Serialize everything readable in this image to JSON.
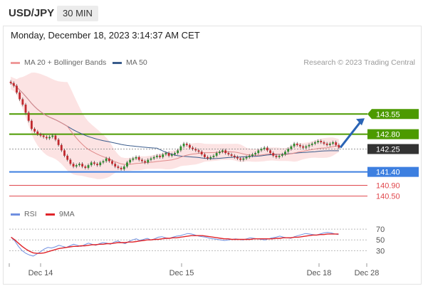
{
  "header": {
    "symbol": "USD/JPY",
    "timeframe": "30 MIN",
    "timestamp": "Monday, December 18, 2023 3:14:37 AM CET"
  },
  "legend": {
    "ma20_label": "MA 20 + Bollinger Bands",
    "ma50_label": "MA 50",
    "credit": "Research © 2023 Trading Central",
    "rsi_label": "RSI",
    "rsi_ma_label": "9MA"
  },
  "colors": {
    "up_candle": "#2e8b2e",
    "down_candle": "#c0282d",
    "resistance": "#4c9a00",
    "pivot": "#333333",
    "support_main": "#3d7fe0",
    "support_minor": "#e0474c",
    "ma20": "#e08a8a",
    "ma50": "#3a5c8c",
    "bollinger_fill": "#fbdada",
    "rsi": "#6f8fe0",
    "rsi_ma": "#e0242a",
    "arrow": "#2a64b5"
  },
  "chart_data": {
    "type": "candlestick",
    "x_labels": [
      "Dec 14",
      "Dec 15",
      "Dec 18",
      "Dec 28"
    ],
    "price_axis": {
      "min": 140.2,
      "max": 144.8
    },
    "levels": [
      {
        "value": 143.55,
        "label": "143.55",
        "kind": "resistance"
      },
      {
        "value": 142.8,
        "label": "142.80",
        "kind": "resistance"
      },
      {
        "value": 142.25,
        "label": "142.25",
        "kind": "pivot"
      },
      {
        "value": 141.4,
        "label": "141.40",
        "kind": "support"
      },
      {
        "value": 140.9,
        "label": "140.90",
        "kind": "support-minor"
      },
      {
        "value": 140.5,
        "label": "140.50",
        "kind": "support-minor"
      }
    ],
    "forecast_arrow": {
      "from": 142.25,
      "to": 143.55,
      "direction": "up"
    },
    "close_series": [
      144.7,
      144.6,
      144.35,
      144.1,
      143.9,
      143.6,
      143.3,
      143.0,
      142.9,
      142.8,
      142.75,
      142.7,
      142.65,
      142.7,
      142.75,
      142.6,
      142.4,
      142.2,
      142.0,
      141.85,
      141.7,
      141.6,
      141.65,
      141.7,
      141.6,
      141.55,
      141.65,
      141.75,
      141.7,
      141.65,
      141.75,
      141.8,
      141.9,
      141.8,
      141.7,
      141.6,
      141.55,
      141.5,
      141.6,
      141.75,
      141.85,
      141.9,
      141.95,
      141.85,
      141.8,
      141.75,
      141.85,
      141.9,
      141.95,
      142.0,
      141.95,
      142.05,
      142.1,
      142.0,
      142.05,
      142.1,
      142.2,
      142.35,
      142.45,
      142.4,
      142.3,
      142.25,
      142.2,
      142.15,
      142.05,
      141.95,
      141.9,
      141.95,
      142.0,
      142.1,
      142.15,
      142.2,
      142.1,
      142.05,
      142.0,
      141.95,
      141.9,
      141.85,
      141.9,
      141.95,
      142.0,
      142.05,
      142.1,
      142.2,
      142.25,
      142.3,
      142.2,
      142.1,
      142.0,
      141.95,
      142.0,
      142.05,
      142.15,
      142.25,
      142.35,
      142.45,
      142.4,
      142.35,
      142.3,
      142.35,
      142.4,
      142.45,
      142.5,
      142.55,
      142.5,
      142.45,
      142.4,
      142.45,
      142.5,
      142.4,
      142.3
    ],
    "rsi_axis": {
      "min": 0,
      "max": 90,
      "ticks": [
        70,
        50,
        30
      ]
    },
    "rsi_series": [
      55,
      48,
      38,
      30,
      25,
      22,
      20,
      24,
      28,
      33,
      36,
      35,
      37,
      40,
      38,
      36,
      39,
      42,
      40,
      38,
      41,
      44,
      42,
      40,
      43,
      45,
      44,
      42,
      46,
      48,
      45,
      43,
      47,
      50,
      52,
      49,
      51,
      53,
      50,
      52,
      55,
      56,
      54,
      53,
      55,
      57,
      58,
      60,
      62,
      61,
      59,
      57,
      56,
      55,
      53,
      52,
      51,
      50,
      49,
      50,
      51,
      52,
      51,
      50,
      52,
      54,
      53,
      52,
      51,
      50,
      52,
      54,
      55,
      57,
      55,
      54,
      53,
      56,
      58,
      60,
      62,
      61,
      60,
      59,
      61,
      63,
      64,
      63,
      61,
      60
    ],
    "rsi_ma_series": [
      55,
      50,
      44,
      38,
      33,
      29,
      26,
      25,
      25,
      26,
      28,
      30,
      32,
      34,
      35,
      36,
      37,
      38,
      38,
      39,
      39,
      40,
      41,
      41,
      42,
      42,
      43,
      43,
      44,
      45,
      45,
      45,
      46,
      46,
      47,
      48,
      49,
      50,
      50,
      51,
      51,
      52,
      53,
      53,
      54,
      54,
      55,
      56,
      57,
      58,
      58,
      58,
      58,
      57,
      56,
      55,
      54,
      53,
      52,
      52,
      51,
      51,
      51,
      51,
      51,
      51,
      52,
      52,
      52,
      52,
      52,
      52,
      53,
      53,
      54,
      54,
      54,
      55,
      55,
      56,
      57,
      58,
      59,
      59,
      60,
      60,
      61,
      61,
      61,
      61
    ]
  }
}
